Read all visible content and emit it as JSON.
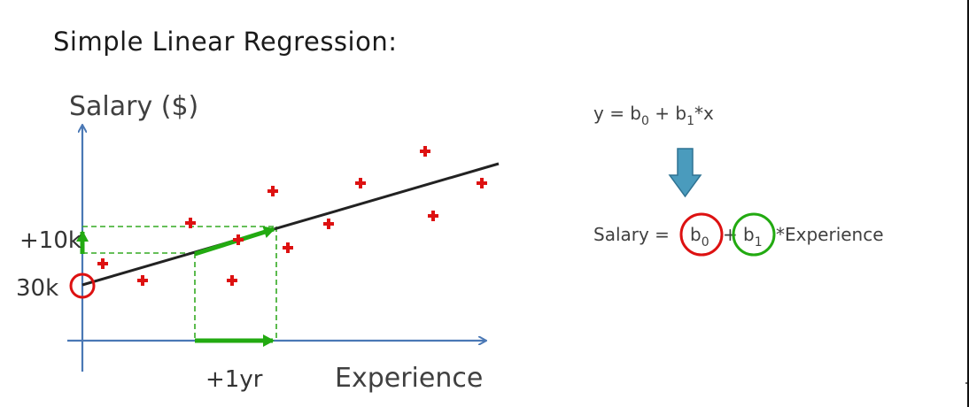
{
  "title": "Simple Linear Regression:",
  "y_axis_label": "Salary ($)",
  "x_axis_label": "Experience",
  "intercept_label": "30k",
  "rise_label": "+10k",
  "run_label": "+1yr",
  "equation_general": {
    "lhs": "y = b",
    "b0_sub": "0",
    "plus": " + b",
    "b1_sub": "1",
    "tail": "*x"
  },
  "equation_specific": {
    "lhs": "Salary =",
    "b0": "b",
    "b0_sub": "0",
    "plus": "+",
    "b1": "b",
    "b1_sub": "1",
    "tail": "*Experience"
  },
  "colors": {
    "axis": "#4a78b5",
    "regression_line": "#222222",
    "data_point": "#dd1111",
    "slope_arrow": "#22aa11",
    "dashed_guide": "#33aa22",
    "intercept_circle": "#dd1111",
    "b0_circle": "#dd1111",
    "b1_circle": "#22aa11",
    "down_arrow": "#4a9bbd"
  },
  "icons": {
    "data_point": "plus-cross",
    "transform_arrow": "down-arrow"
  }
}
